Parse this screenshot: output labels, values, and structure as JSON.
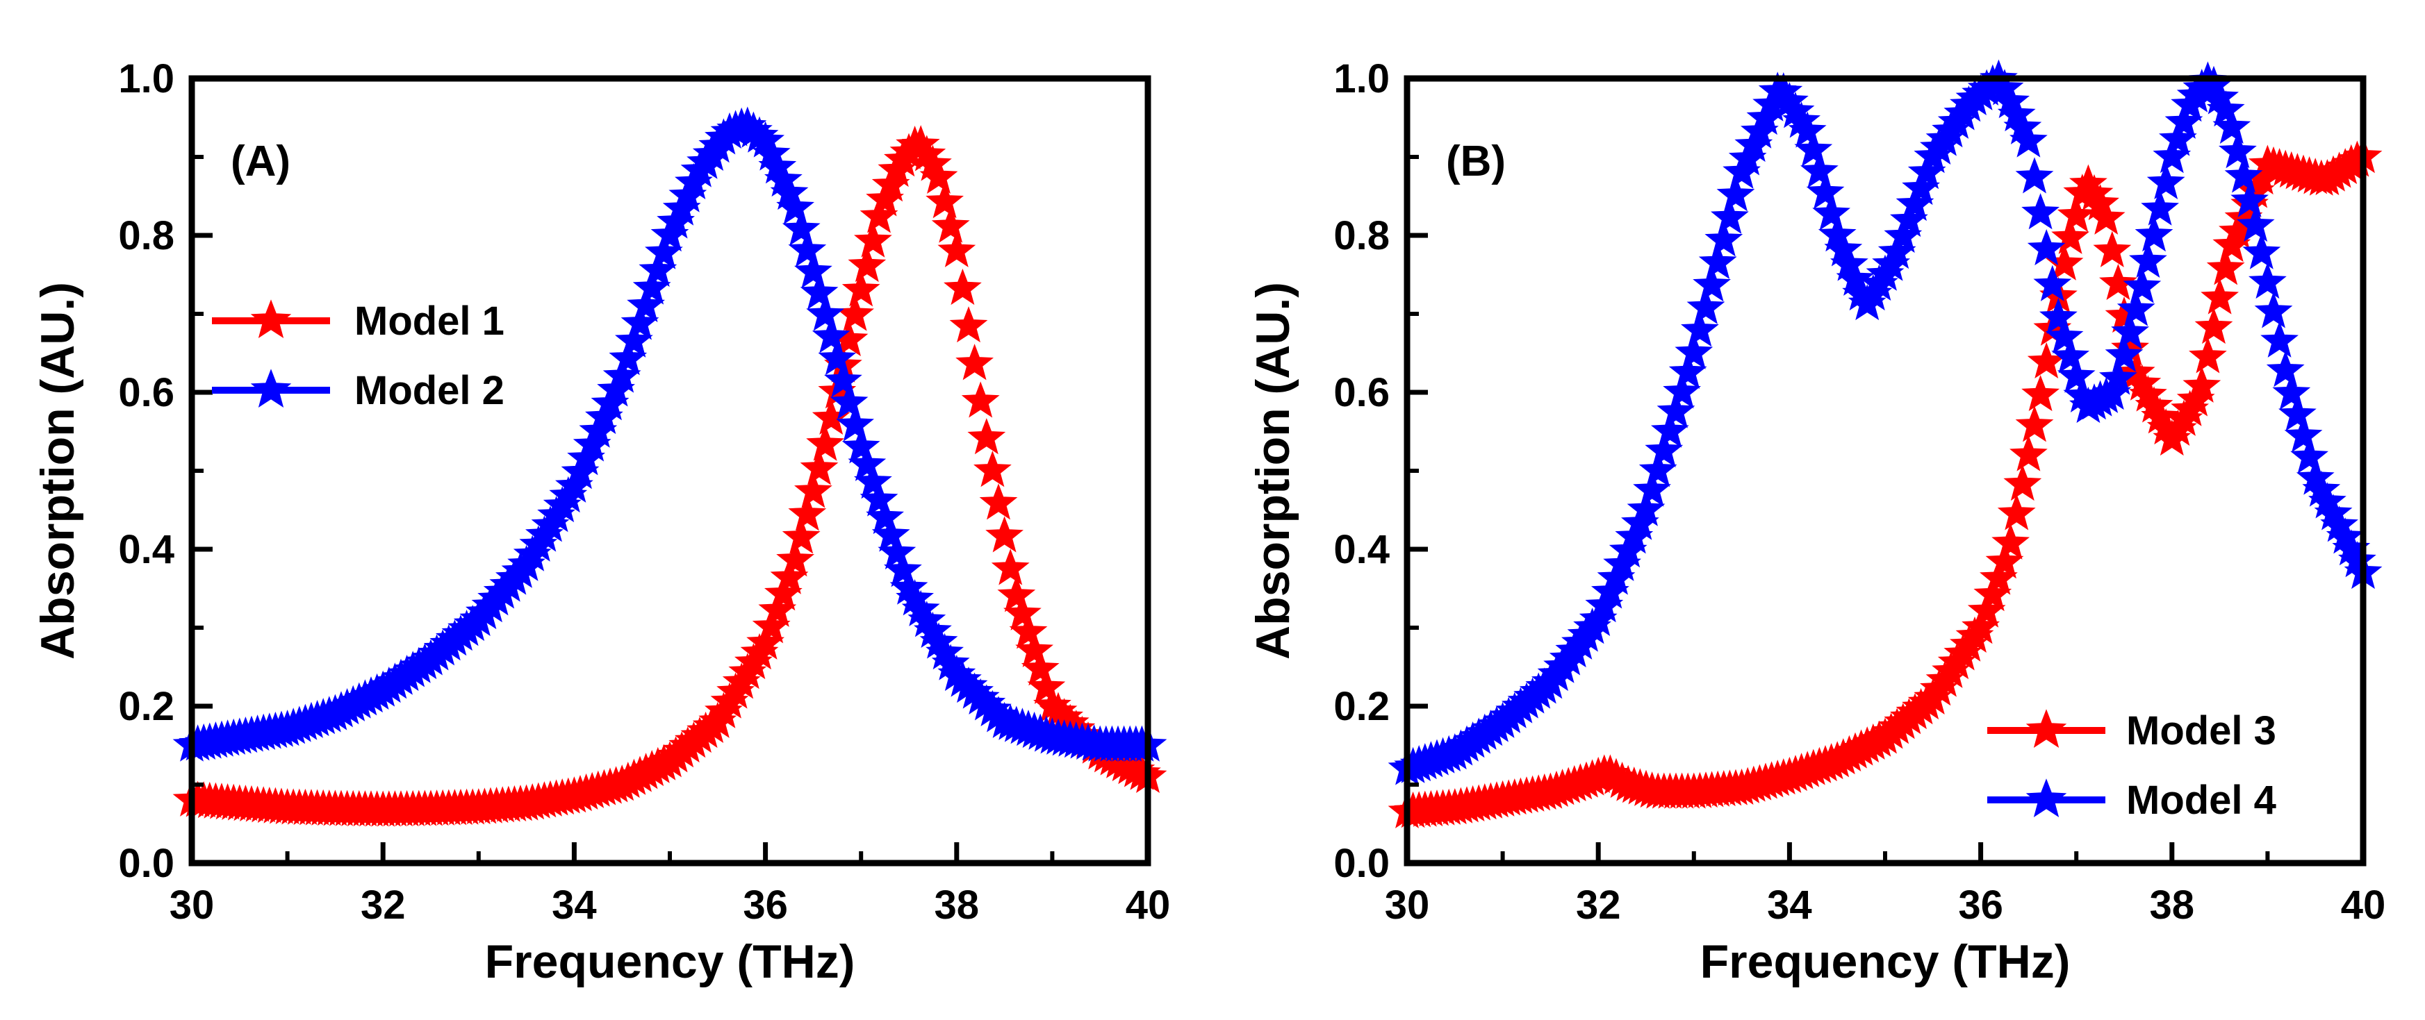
{
  "chart_data": [
    {
      "type": "scatter",
      "panel_label": "(A)",
      "xlabel": "Frequency (THz)",
      "ylabel": "Absorption (AU.)",
      "xlim": [
        30,
        40
      ],
      "ylim": [
        0.0,
        1.0
      ],
      "x_ticks": [
        "30",
        "32",
        "34",
        "36",
        "38",
        "40"
      ],
      "y_ticks": [
        "0.0",
        "0.2",
        "0.4",
        "0.6",
        "0.8",
        "1.0"
      ],
      "legend_position": "left-upper",
      "marker": "star",
      "series": [
        {
          "name": "Model 1",
          "color": "#ff0000",
          "x": [
            30,
            30.5,
            31,
            31.5,
            32,
            32.5,
            33,
            33.5,
            34,
            34.5,
            35,
            35.5,
            36,
            36.3,
            36.6,
            36.9,
            37.2,
            37.4,
            37.6,
            37.8,
            38,
            38.3,
            38.6,
            39,
            39.5,
            40
          ],
          "y": [
            0.08,
            0.075,
            0.07,
            0.068,
            0.067,
            0.068,
            0.07,
            0.075,
            0.085,
            0.1,
            0.13,
            0.18,
            0.28,
            0.38,
            0.52,
            0.68,
            0.83,
            0.89,
            0.92,
            0.88,
            0.78,
            0.55,
            0.35,
            0.2,
            0.14,
            0.11
          ]
        },
        {
          "name": "Model 2",
          "color": "#0000ff",
          "x": [
            30,
            30.5,
            31,
            31.5,
            32,
            32.5,
            33,
            33.5,
            34,
            34.5,
            35,
            35.3,
            35.6,
            35.8,
            36,
            36.3,
            36.6,
            37,
            37.5,
            38,
            38.5,
            39,
            39.5,
            40
          ],
          "y": [
            0.15,
            0.16,
            0.17,
            0.19,
            0.22,
            0.26,
            0.31,
            0.38,
            0.48,
            0.62,
            0.8,
            0.88,
            0.93,
            0.94,
            0.92,
            0.84,
            0.71,
            0.53,
            0.35,
            0.24,
            0.18,
            0.16,
            0.15,
            0.15
          ]
        }
      ]
    },
    {
      "type": "scatter",
      "panel_label": "(B)",
      "xlabel": "Frequency (THz)",
      "ylabel": "Absorption (AU.)",
      "xlim": [
        30,
        40
      ],
      "ylim": [
        0.0,
        1.0
      ],
      "x_ticks": [
        "30",
        "32",
        "34",
        "36",
        "38",
        "40"
      ],
      "y_ticks": [
        "0.0",
        "0.2",
        "0.4",
        "0.6",
        "0.8",
        "1.0"
      ],
      "legend_position": "bottom-right",
      "marker": "star",
      "series": [
        {
          "name": "Model 3",
          "color": "#ff0000",
          "x": [
            30,
            30.5,
            31,
            31.5,
            31.9,
            32.1,
            32.3,
            32.6,
            33,
            33.5,
            34,
            34.5,
            35,
            35.5,
            36,
            36.3,
            36.6,
            36.9,
            37.1,
            37.3,
            37.6,
            38,
            38.3,
            38.6,
            39,
            39.3,
            39.6,
            40
          ],
          "y": [
            0.065,
            0.07,
            0.08,
            0.09,
            0.105,
            0.115,
            0.1,
            0.09,
            0.09,
            0.095,
            0.11,
            0.13,
            0.16,
            0.21,
            0.3,
            0.4,
            0.58,
            0.78,
            0.87,
            0.83,
            0.63,
            0.54,
            0.6,
            0.78,
            0.89,
            0.88,
            0.87,
            0.9
          ]
        },
        {
          "name": "Model 4",
          "color": "#0000ff",
          "x": [
            30,
            30.5,
            31,
            31.5,
            32,
            32.5,
            33,
            33.5,
            33.9,
            34.2,
            34.5,
            34.8,
            35.1,
            35.5,
            35.9,
            36.2,
            36.5,
            36.8,
            37.1,
            37.4,
            37.7,
            38,
            38.2,
            38.4,
            38.6,
            38.9,
            39.2,
            39.5,
            40
          ],
          "y": [
            0.12,
            0.14,
            0.18,
            0.23,
            0.31,
            0.45,
            0.65,
            0.88,
            0.99,
            0.93,
            0.8,
            0.71,
            0.77,
            0.9,
            0.97,
            1.0,
            0.92,
            0.7,
            0.58,
            0.6,
            0.74,
            0.9,
            0.97,
            1.0,
            0.95,
            0.8,
            0.62,
            0.49,
            0.37
          ]
        }
      ]
    }
  ]
}
